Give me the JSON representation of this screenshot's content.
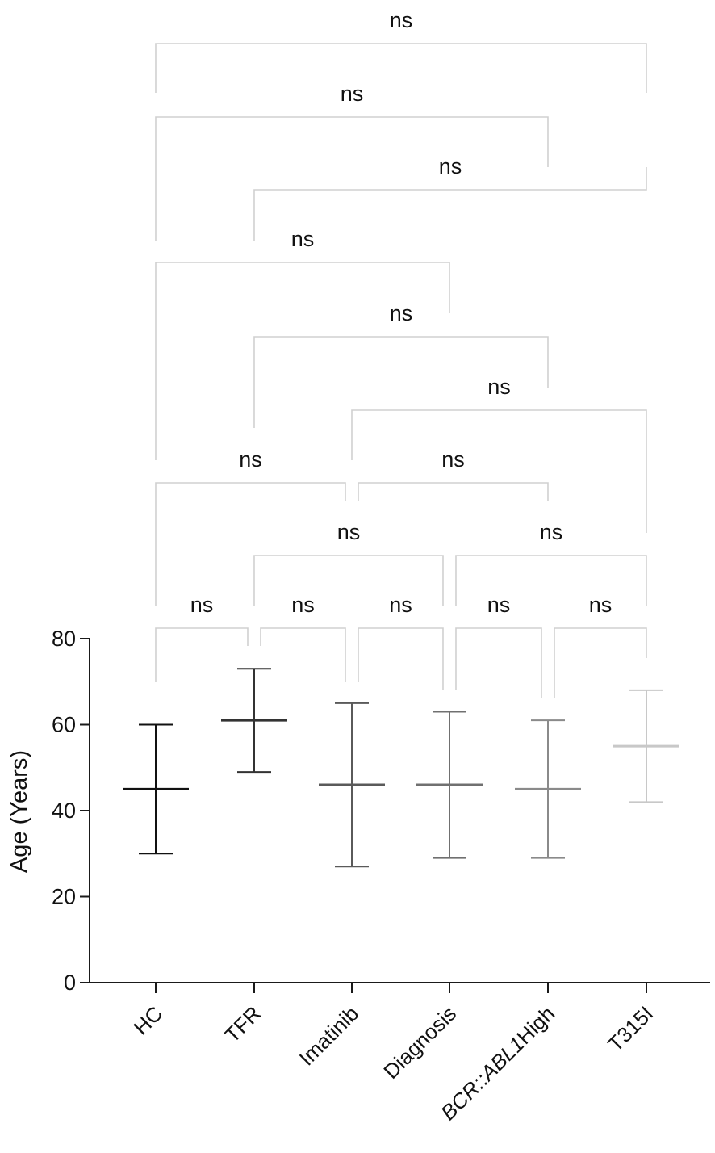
{
  "chart_data": {
    "type": "errorbar",
    "ylabel": "Age (Years)",
    "ylim": [
      0,
      80
    ],
    "yticks": [
      "0",
      "20",
      "40",
      "60",
      "80"
    ],
    "grid": false,
    "groups": [
      {
        "label": "HC",
        "center": 45,
        "low": 30,
        "high": 60,
        "color": "#111111"
      },
      {
        "label": "TFR",
        "center": 61,
        "low": 49,
        "high": 73,
        "color": "#333333"
      },
      {
        "label": "Imatinib",
        "center": 46,
        "low": 27,
        "high": 65,
        "color": "#5a5a5a"
      },
      {
        "label": "Diagnosis",
        "center": 46,
        "low": 29,
        "high": 63,
        "color": "#707070"
      },
      {
        "label_italic": "BCR::ABL1",
        "label_suffix": "High",
        "center": 45,
        "low": 29,
        "high": 61,
        "color": "#8a8a8a"
      },
      {
        "label": "T315I",
        "center": 55,
        "low": 42,
        "high": 68,
        "color": "#c8c8c8"
      }
    ],
    "comparisons": [
      {
        "groups": [
          0,
          5
        ],
        "label": "ns"
      },
      {
        "groups": [
          0,
          4
        ],
        "label": "ns"
      },
      {
        "groups": [
          1,
          5
        ],
        "label": "ns"
      },
      {
        "groups": [
          0,
          3
        ],
        "label": "ns"
      },
      {
        "groups": [
          1,
          4
        ],
        "label": "ns"
      },
      {
        "groups": [
          2,
          5
        ],
        "label": "ns"
      },
      {
        "groups": [
          0,
          2
        ],
        "label": "ns"
      },
      {
        "groups": [
          2,
          4
        ],
        "label": "ns"
      },
      {
        "groups": [
          1,
          3
        ],
        "label": "ns"
      },
      {
        "groups": [
          3,
          5
        ],
        "label": "ns"
      },
      {
        "groups": [
          0,
          1
        ],
        "label": "ns"
      },
      {
        "groups": [
          1,
          2
        ],
        "label": "ns"
      },
      {
        "groups": [
          2,
          3
        ],
        "label": "ns"
      },
      {
        "groups": [
          3,
          4
        ],
        "label": "ns"
      },
      {
        "groups": [
          4,
          5
        ],
        "label": "ns"
      }
    ]
  }
}
